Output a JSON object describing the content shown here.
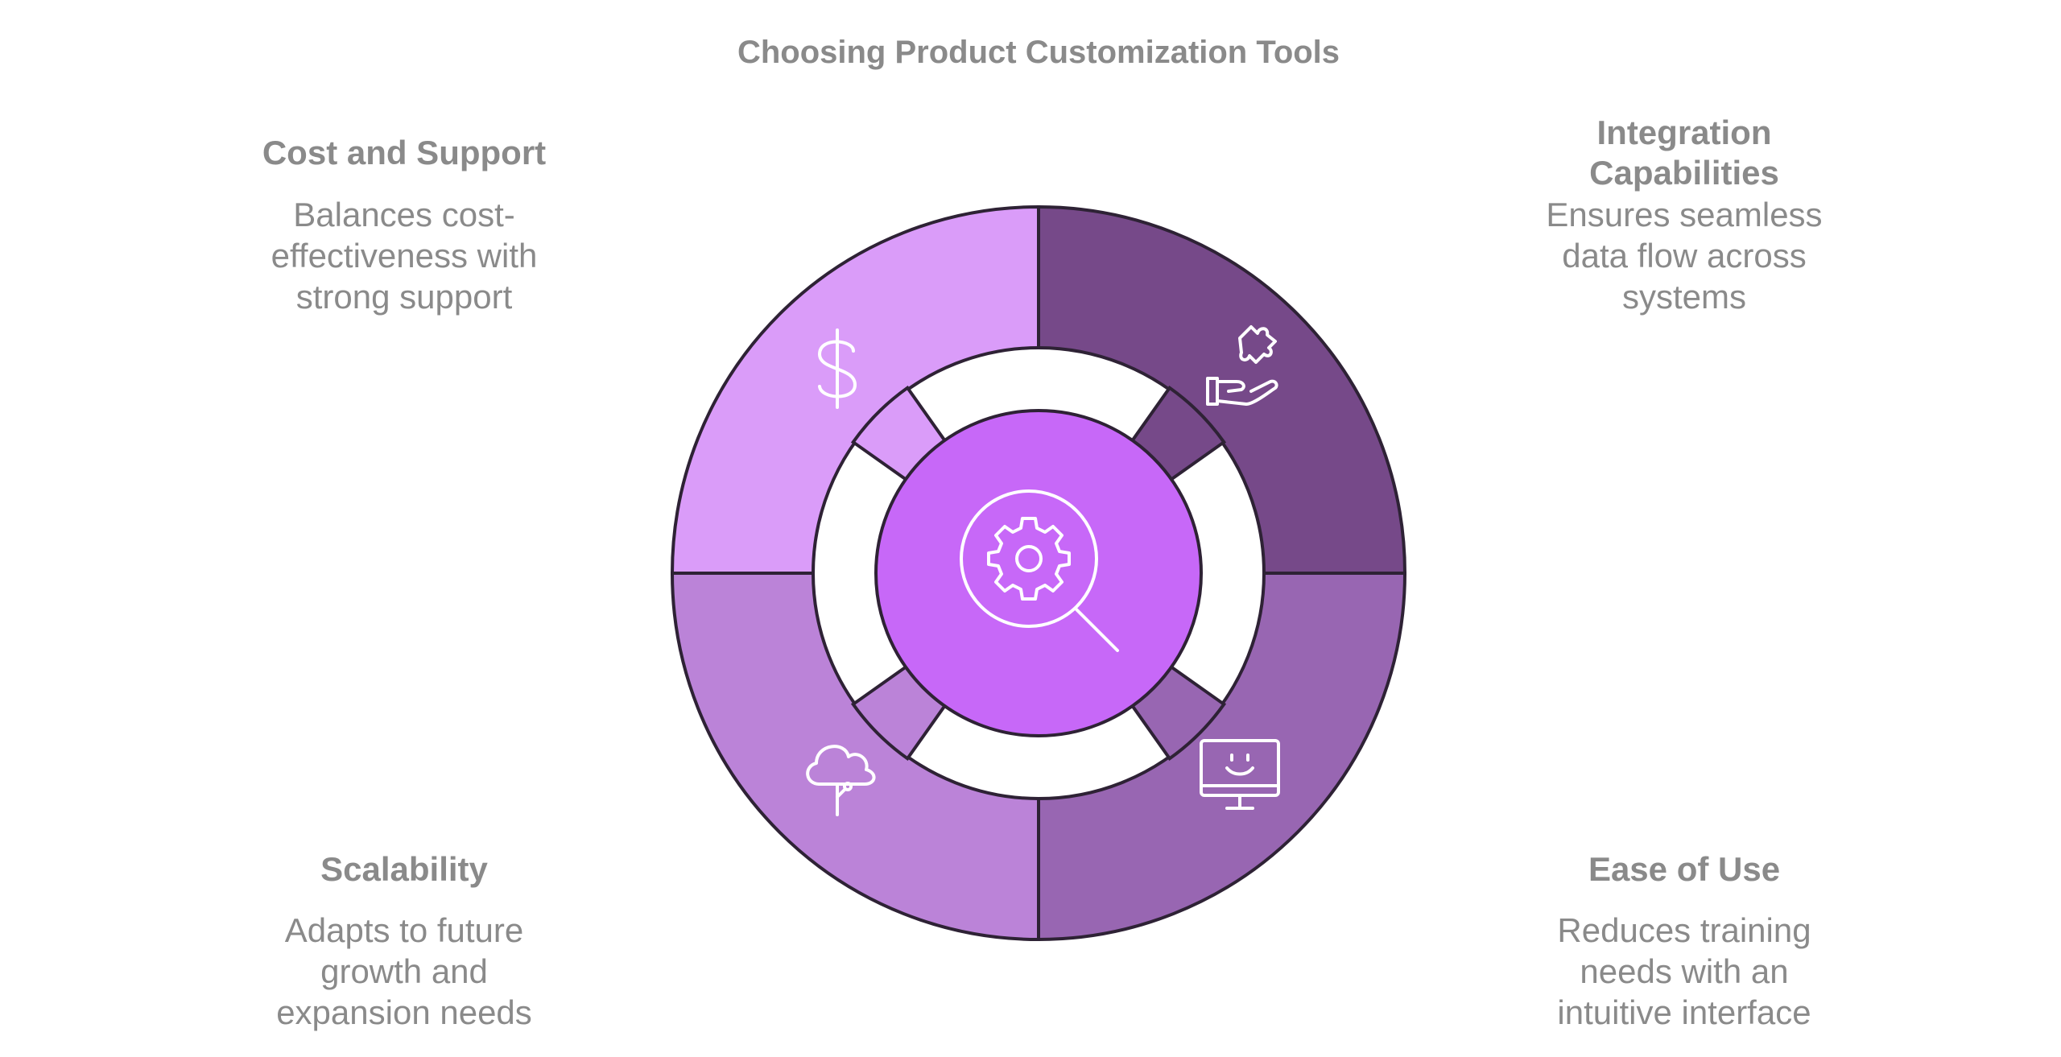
{
  "title": "Choosing Product Customization Tools",
  "center": {
    "icon": "gear-magnifier-icon",
    "color": "#c768f8"
  },
  "quadrants": {
    "cost_support": {
      "heading": "Cost and Support",
      "description": [
        "Balances cost-",
        "effectiveness with",
        "strong support"
      ],
      "icon": "dollar-icon",
      "color": "#da9cf9"
    },
    "integration": {
      "heading": [
        "Integration",
        "Capabilities"
      ],
      "description": [
        "Ensures seamless",
        "data flow across",
        "systems"
      ],
      "icon": "puzzle-hand-icon",
      "color": "#764989"
    },
    "scalability": {
      "heading": "Scalability",
      "description": [
        "Adapts to future",
        "growth and",
        "expansion needs"
      ],
      "icon": "cloud-tree-icon",
      "color": "#bb83d8"
    },
    "ease_of_use": {
      "heading": "Ease of Use",
      "description": [
        "Reduces training",
        "needs with an",
        "intuitive interface"
      ],
      "icon": "smiley-monitor-icon",
      "color": "#9866b2"
    }
  }
}
